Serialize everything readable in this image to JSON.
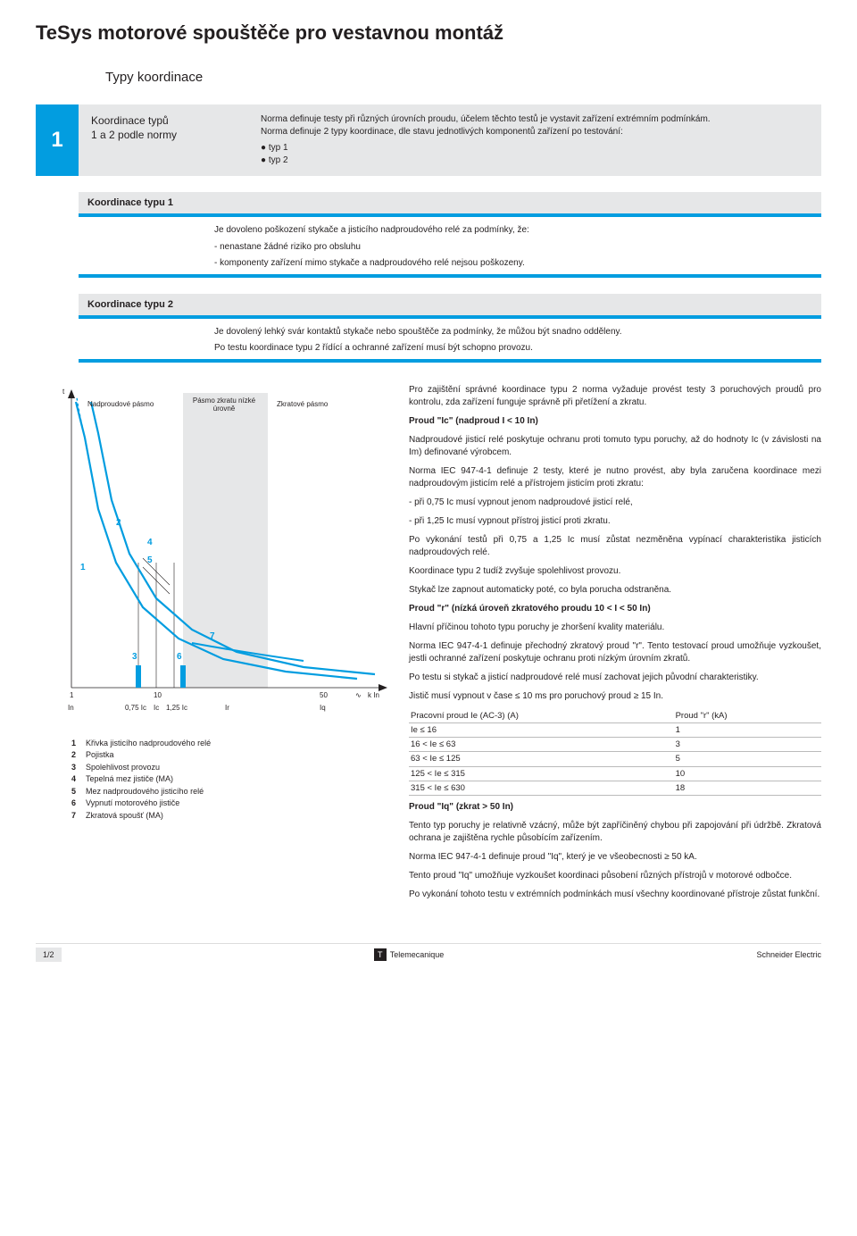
{
  "header_title": "TeSys motorové spouštěče pro vestavnou montáž",
  "subtitle": "Typy koordinace",
  "main_section": {
    "number": "1",
    "heading_line1": "Koordinace typů",
    "heading_line2": "1 a 2 podle normy",
    "intro": "Norma definuje testy při různých úrovních proudu, účelem těchto testů je vystavit zařízení extrémním podmínkám.",
    "intro2": "Norma definuje 2 typy koordinace, dle stavu jednotlivých komponentů zařízení po testování:",
    "bullets": [
      "typ 1",
      "typ 2"
    ]
  },
  "koord1": {
    "title": "Koordinace typu 1",
    "lines": [
      "Je dovoleno poškození stykače a jisticího nadproudového relé za podmínky, že:",
      "- nenastane žádné riziko pro obsluhu",
      "- komponenty zařízení mimo stykače a nadproudového relé nejsou poškozeny."
    ]
  },
  "koord2": {
    "title": "Koordinace typu 2",
    "lines": [
      "Je dovolený lehký svár kontaktů stykače nebo spouštěče za podmínky, že můžou být snadno odděleny.",
      "Po testu koordinace typu 2 řídící a ochranné zařízení musí být schopno provozu."
    ]
  },
  "chart": {
    "type": "line",
    "zones": {
      "overload": "Nadproudové pásmo",
      "low_sc": "Pásmo zkratu nízké úrovně",
      "sc": "Zkratové pásmo"
    },
    "low_sc_band_color": "#e6e7e8",
    "xticks": [
      "1",
      "10",
      "50"
    ],
    "xsubticks": [
      "In",
      "0,75 Ic",
      "Ic",
      "1,25 Ic",
      "Ir",
      "Iq"
    ],
    "x_right_unit": "k In",
    "x_right_symbol": "∿",
    "y_label": "t",
    "curve1_color": "#029de0",
    "curve2_color": "#029de0",
    "marker_numbers": [
      "1",
      "2",
      "3",
      "4",
      "5",
      "6",
      "7"
    ],
    "curve1_width": 2.2,
    "curve2_width": 2.2,
    "background": "#ffffff",
    "curve1_points": [
      [
        45,
        20
      ],
      [
        55,
        60
      ],
      [
        70,
        140
      ],
      [
        90,
        200
      ],
      [
        120,
        250
      ],
      [
        160,
        285
      ],
      [
        210,
        308
      ],
      [
        280,
        322
      ],
      [
        360,
        330
      ]
    ],
    "curve2_points": [
      [
        62,
        20
      ],
      [
        70,
        55
      ],
      [
        85,
        130
      ],
      [
        105,
        190
      ],
      [
        135,
        240
      ],
      [
        175,
        275
      ],
      [
        225,
        300
      ],
      [
        300,
        317
      ],
      [
        380,
        325
      ]
    ]
  },
  "rightcol": {
    "p1": "Pro zajištění správné koordinace typu 2 norma vyžaduje provést testy 3 poruchových proudů pro kontrolu, zda zařízení funguje správně při přetížení a zkratu.",
    "h1": "Proud \"Ic\" (nadproud I < 10 In)",
    "p2": "Nadproudové jisticí relé poskytuje ochranu proti tomuto typu poruchy, až do hodnoty Ic (v závislosti na Im) definované výrobcem.",
    "p3": "Norma IEC 947-4-1 definuje 2 testy, které je nutno provést, aby byla zaručena koordinace mezi nadproudovým jisticím relé a přístrojem jisticím proti zkratu:",
    "p3a": "- při 0,75 Ic musí vypnout jenom nadproudové jisticí relé,",
    "p3b": "- při 1,25 Ic musí vypnout přístroj jisticí proti zkratu.",
    "p4": "Po vykonání testů při 0,75 a 1,25 Ic musí zůstat nezměněna vypínací charakteristika jisticích nadproudových relé.",
    "p4a": "Koordinace typu 2 tudíž zvyšuje spolehlivost provozu.",
    "p4b": "Stykač lze zapnout automaticky poté, co byla porucha odstraněna.",
    "h2": "Proud \"r\" (nízká úroveň zkratového proudu 10 < I < 50 In)",
    "p5": "Hlavní příčinou tohoto typu poruchy je zhoršení kvality materiálu.",
    "p6": "Norma IEC 947-4-1 definuje přechodný zkratový proud \"r\". Tento testovací proud umožňuje vyzkoušet, jestli ochranné zařízení poskytuje ochranu proti nízkým úrovním zkratů.",
    "p7": "Po testu si stykač a jisticí nadproudové relé musí zachovat jejich původní charakteristiky.",
    "p7a": "Jistič musí vypnout v čase ≤ 10 ms pro poruchový proud ≥ 15 In.",
    "table": {
      "head": [
        "Pracovní proud Ie (AC-3) (A)",
        "Proud \"r\" (kA)"
      ],
      "rows": [
        [
          "Ie ≤ 16",
          "1"
        ],
        [
          "16 < Ie ≤ 63",
          "3"
        ],
        [
          "63 < Ie ≤ 125",
          "5"
        ],
        [
          "125 < Ie ≤ 315",
          "10"
        ],
        [
          "315 < Ie ≤ 630",
          "18"
        ]
      ]
    },
    "h3": "Proud \"Iq\" (zkrat > 50 In)",
    "p8": "Tento typ poruchy je relativně vzácný, může být zapříčiněný chybou při zapojování při údržbě. Zkratová ochrana je zajištěna rychle působícím zařízením.",
    "p8a": "Norma IEC 947-4-1 definuje proud \"Iq\", který je ve všeobecnosti ≥ 50 kA.",
    "p8b": "Tento proud \"Iq\" umožňuje vyzkoušet koordinaci působení různých přístrojů v motorové odbočce.",
    "p9": "Po vykonání tohoto testu v extrémních podmínkách musí všechny koordinované přístroje zůstat funkční."
  },
  "legend": [
    {
      "n": "1",
      "t": "Křivka jisticího nadproudového relé"
    },
    {
      "n": "2",
      "t": "Pojistka"
    },
    {
      "n": "3",
      "t": "Spolehlivost provozu"
    },
    {
      "n": "4",
      "t": "Tepelná mez jističe (MA)"
    },
    {
      "n": "5",
      "t": "Mez nadproudového jisticího relé"
    },
    {
      "n": "6",
      "t": "Vypnutí motorového jističe"
    },
    {
      "n": "7",
      "t": "Zkratová spoušť (MA)"
    }
  ],
  "footer": {
    "page": "1/2",
    "brand_mid": "Telemecanique",
    "brand_right": "Schneider Electric"
  },
  "colors": {
    "accent": "#029de0",
    "panel": "#e6e7e8",
    "text": "#231f20"
  }
}
